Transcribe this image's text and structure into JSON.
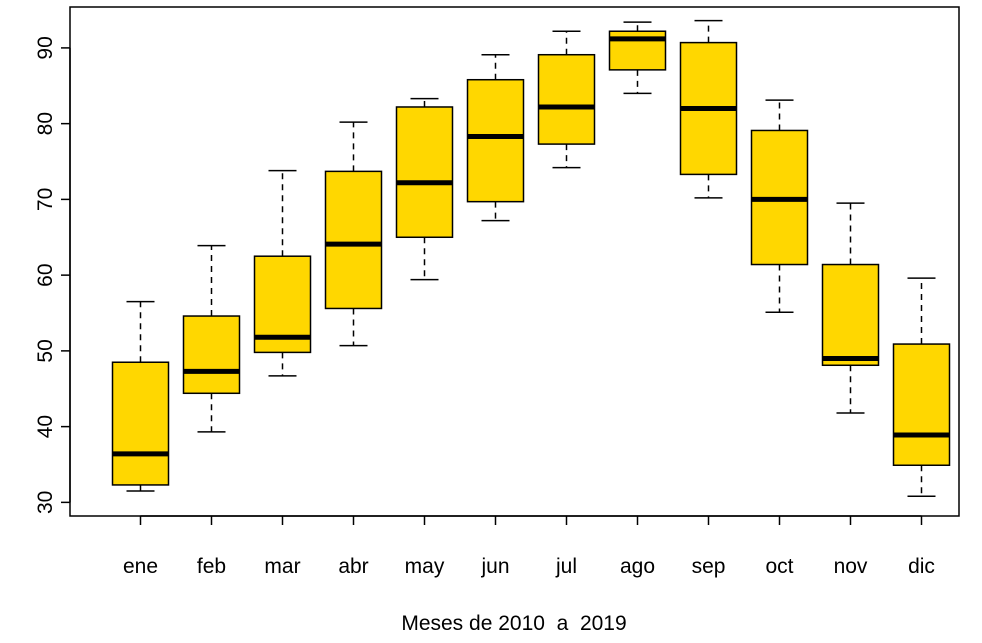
{
  "chart_data": {
    "type": "boxplot",
    "title": "",
    "xlabel": "Meses de 2010  a  2019",
    "ylabel": "",
    "categories": [
      "ene",
      "feb",
      "mar",
      "abr",
      "may",
      "jun",
      "jul",
      "ago",
      "sep",
      "oct",
      "nov",
      "dic"
    ],
    "boxes": [
      {
        "min": 31.5,
        "q1": 32.3,
        "median": 36.4,
        "q3": 48.5,
        "max": 56.5
      },
      {
        "min": 39.3,
        "q1": 44.4,
        "median": 47.3,
        "q3": 54.6,
        "max": 63.9
      },
      {
        "min": 46.7,
        "q1": 49.8,
        "median": 51.8,
        "q3": 62.5,
        "max": 73.8
      },
      {
        "min": 50.7,
        "q1": 55.6,
        "median": 64.1,
        "q3": 73.7,
        "max": 80.2
      },
      {
        "min": 59.4,
        "q1": 65.0,
        "median": 72.2,
        "q3": 82.2,
        "max": 83.3
      },
      {
        "min": 67.2,
        "q1": 69.7,
        "median": 78.3,
        "q3": 85.8,
        "max": 89.1
      },
      {
        "min": 74.2,
        "q1": 77.3,
        "median": 82.2,
        "q3": 89.1,
        "max": 92.2
      },
      {
        "min": 84.0,
        "q1": 87.1,
        "median": 91.2,
        "q3": 92.2,
        "max": 93.4
      },
      {
        "min": 70.2,
        "q1": 73.3,
        "median": 82.0,
        "q3": 90.7,
        "max": 93.6
      },
      {
        "min": 55.1,
        "q1": 61.4,
        "median": 70.0,
        "q3": 79.1,
        "max": 83.1
      },
      {
        "min": 41.8,
        "q1": 48.1,
        "median": 49.0,
        "q3": 61.4,
        "max": 69.5
      },
      {
        "min": 30.8,
        "q1": 34.9,
        "median": 38.9,
        "q3": 50.9,
        "max": 59.6
      }
    ],
    "yticks": [
      30,
      40,
      50,
      60,
      70,
      80,
      90
    ],
    "ylim": [
      28.2,
      95.4
    ],
    "box_color": "#FFD700",
    "grid": false,
    "legend": "none"
  }
}
